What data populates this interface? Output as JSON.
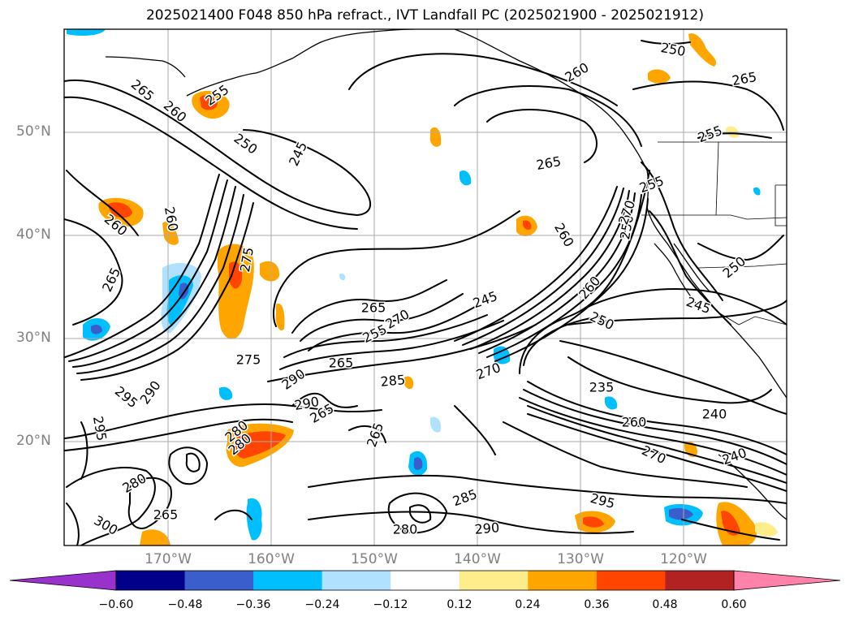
{
  "title": "2025021400 F048 850 hPa refract., IVT Landfall PC (2025021900 - 2025021912)",
  "lat_labels": [
    "50°N",
    "40°N",
    "30°N",
    "20°N"
  ],
  "lon_labels": [
    "170°W",
    "160°W",
    "150°W",
    "140°W",
    "130°W",
    "120°W"
  ],
  "contour_labels": [
    "265",
    "260",
    "255",
    "250",
    "245",
    "260",
    "265",
    "260",
    "265",
    "260",
    "255",
    "275",
    "265",
    "270",
    "255",
    "245",
    "250",
    "260",
    "250",
    "265",
    "275",
    "285",
    "270",
    "290",
    "295",
    "290",
    "235",
    "260",
    "240",
    "270",
    "265",
    "240",
    "280",
    "280",
    "265",
    "280",
    "295",
    "285",
    "290",
    "300",
    "280",
    "260",
    "250",
    "245",
    "265",
    "250",
    "255",
    "270",
    "265",
    "295",
    "290"
  ],
  "colorbar": {
    "ticks": [
      "−0.60",
      "−0.48",
      "−0.36",
      "−0.24",
      "−0.12",
      "0.12",
      "0.24",
      "0.36",
      "0.48",
      "0.60"
    ],
    "colors": [
      "#9932cc",
      "#00008b",
      "#3a5fcd",
      "#00bfff",
      "#b0e2ff",
      "#ffffff",
      "#ffec8b",
      "#ffa500",
      "#ff4500",
      "#b22222",
      "#ff82ab"
    ]
  }
}
